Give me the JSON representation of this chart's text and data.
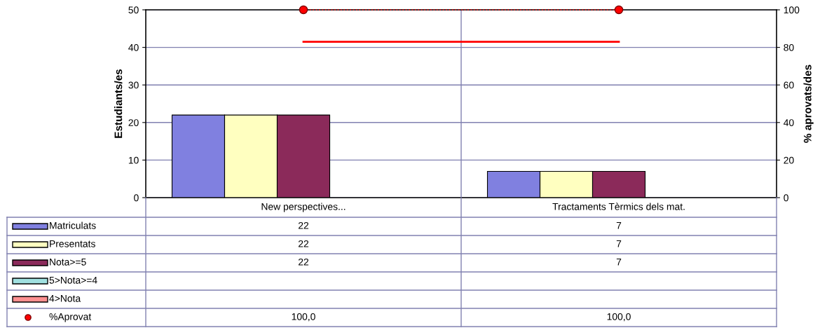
{
  "chart_data": {
    "type": "bar",
    "ylabel": "Estudiants/es",
    "y2label": "% aprovats/des",
    "categories": [
      "New perspectives...",
      "Tractaments Tèrmics dels mat."
    ],
    "series": [
      {
        "name": "Matriculats",
        "color": "#8080e0",
        "values": [
          22,
          7
        ],
        "value_labels": [
          "22",
          "7"
        ]
      },
      {
        "name": "Presentats",
        "color": "#ffffc0",
        "values": [
          22,
          7
        ],
        "value_labels": [
          "22",
          "7"
        ]
      },
      {
        "name": "Nota>=5",
        "color": "#8b2a5a",
        "values": [
          22,
          7
        ],
        "value_labels": [
          "22",
          "7"
        ]
      },
      {
        "name": "5>Nota>=4",
        "color": "#a0e0e0",
        "values": [
          null,
          null
        ],
        "value_labels": [
          null,
          null
        ]
      },
      {
        "name": "4>Nota",
        "color": "#ff9090",
        "values": [
          null,
          null
        ],
        "value_labels": [
          null,
          null
        ]
      },
      {
        "name": "%Aprovat",
        "type": "line",
        "axis": "y2",
        "color": "#ff0000",
        "marker": "circle",
        "line_style": "dotted",
        "values": [
          100,
          100
        ],
        "value_labels": [
          "100,0",
          "100,0"
        ]
      },
      {
        "type": "line",
        "axis": "y2",
        "color": "#ff0000",
        "marker": "none",
        "line_style": "solid",
        "values": [
          83,
          83
        ]
      }
    ],
    "ylim": [
      0,
      50
    ],
    "yticks": [
      0,
      10,
      20,
      30,
      40,
      50
    ],
    "y2lim": [
      0,
      100
    ],
    "y2ticks": [
      0,
      20,
      40,
      60,
      80,
      100
    ],
    "grid": "y",
    "legend": "bottom left"
  }
}
